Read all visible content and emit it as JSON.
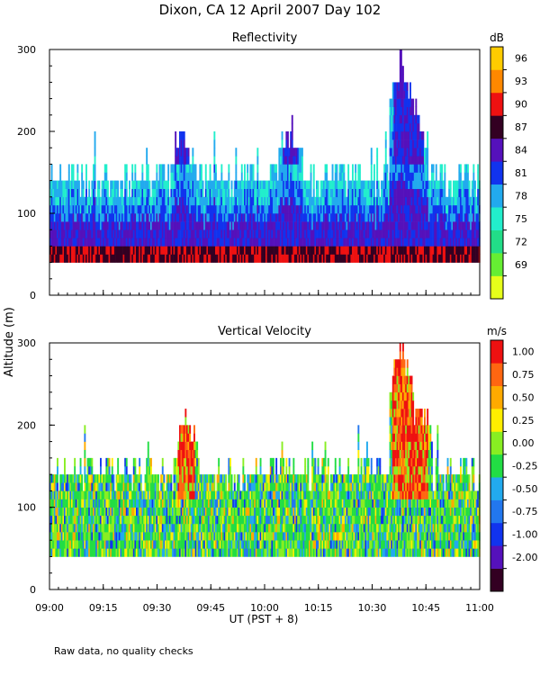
{
  "title": "Dixon, CA 12 April 2007  Day 102",
  "footnote": "Raw data, no quality checks",
  "y_axis_label": "Altitude (m)",
  "x_axis_label": "UT  (PST + 8)",
  "colors": {
    "reflectivity_scale": [
      "#e6ff1a",
      "#66ee33",
      "#22dd88",
      "#22eecc",
      "#22aaee",
      "#1133ee",
      "#5511bb",
      "#330022",
      "#ee1111",
      "#ff8800",
      "#ffcc00"
    ],
    "velocity_scale": [
      "#330022",
      "#5511bb",
      "#1133ee",
      "#2277ee",
      "#22aaee",
      "#22dd44",
      "#88ee22",
      "#ffee00",
      "#ffaa00",
      "#ff6611",
      "#ee1111"
    ]
  },
  "chart_data": [
    {
      "type": "heatmap",
      "title": "Reflectivity",
      "xlabel": "UT  (PST + 8)",
      "ylabel": "Altitude (m)",
      "x_ticks": [
        "09:00",
        "09:15",
        "09:30",
        "09:45",
        "10:00",
        "10:15",
        "10:30",
        "10:45",
        "11:00"
      ],
      "y_ticks": [
        "0",
        "100",
        "200",
        "300"
      ],
      "xlim": [
        "09:00",
        "11:00"
      ],
      "ylim": [
        0,
        300
      ],
      "colorbar": {
        "unit": "dB",
        "labels": [
          "96",
          "93",
          "90",
          "87",
          "84",
          "81",
          "78",
          "75",
          "72",
          "69"
        ]
      },
      "data_summary": {
        "min_altitude_m": 40,
        "typical_top_m": 140,
        "local_max_top_m": [
          {
            "time": "09:37",
            "top_m": 220
          },
          {
            "time": "10:07",
            "top_m": 220
          },
          {
            "time": "10:38",
            "top_m": 300
          },
          {
            "time": "10:42",
            "top_m": 240
          }
        ]
      }
    },
    {
      "type": "heatmap",
      "title": "Vertical Velocity",
      "xlabel": "UT  (PST + 8)",
      "ylabel": "Altitude (m)",
      "x_ticks": [
        "09:00",
        "09:15",
        "09:30",
        "09:45",
        "10:00",
        "10:15",
        "10:30",
        "10:45",
        "11:00"
      ],
      "y_ticks": [
        "0",
        "100",
        "200",
        "300"
      ],
      "xlim": [
        "09:00",
        "11:00"
      ],
      "ylim": [
        0,
        300
      ],
      "colorbar": {
        "unit": "m/s",
        "labels": [
          "1.00",
          "0.75",
          "0.50",
          "0.25",
          "0.00",
          "-0.25",
          "-0.50",
          "-0.75",
          "-1.00",
          "-2.00"
        ]
      },
      "data_summary": {
        "min_altitude_m": 40,
        "typical_top_m": 140,
        "updraft_regions": [
          {
            "time": "09:38",
            "top_m": 220
          },
          {
            "time": "10:38",
            "top_m": 300
          },
          {
            "time": "10:43",
            "top_m": 240
          }
        ]
      }
    }
  ]
}
